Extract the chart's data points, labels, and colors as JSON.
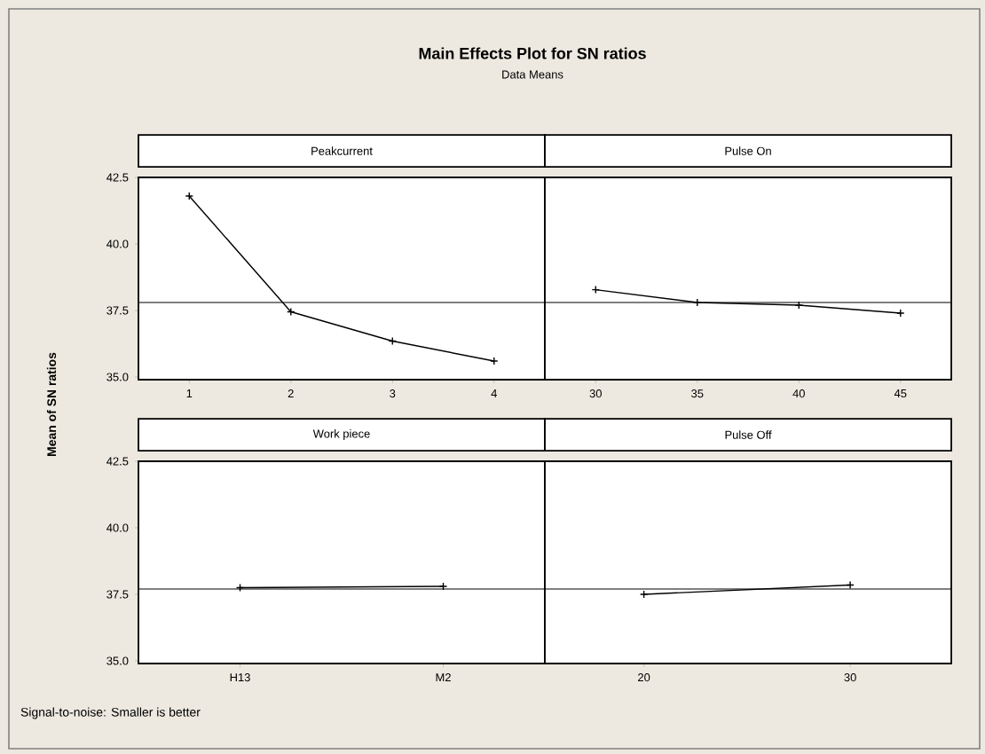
{
  "chart_data": [
    {
      "type": "other",
      "title": "Main Effects Plot for SN ratios",
      "subtitle": "Data Means",
      "ylabel": "Mean of SN ratios",
      "annotations": [
        "Signal-to-noise: Smaller is better"
      ]
    },
    {
      "type": "line",
      "title": "Peakcurrent",
      "x": [
        1,
        2,
        3,
        4
      ],
      "values": [
        41.8,
        37.45,
        36.35,
        35.6
      ],
      "color": "#000000",
      "marker": "cross",
      "xlim": [
        0.5,
        4.5
      ],
      "xticks": [
        1,
        2,
        3,
        4
      ],
      "ylim": [
        34.9,
        42.5
      ],
      "yticks": [
        {
          "value": 35,
          "label": "35.0"
        },
        {
          "value": 37.5,
          "label": "37.5"
        },
        {
          "value": 40,
          "label": "40.0"
        },
        {
          "value": 42.5,
          "label": "42.5"
        }
      ],
      "ref_lines": [
        {
          "axis": "y",
          "value": 37.8
        }
      ]
    },
    {
      "type": "line",
      "title": "Pulse On",
      "x": [
        30,
        35,
        40,
        45
      ],
      "values": [
        38.28,
        37.8,
        37.7,
        37.4
      ],
      "color": "#000000",
      "marker": "cross",
      "xlim": [
        27.5,
        47.5
      ],
      "xticks": [
        30,
        35,
        40,
        45
      ],
      "ylim": [
        34.9,
        42.5
      ],
      "tick_labels": "x",
      "ref_lines": [
        {
          "axis": "y",
          "value": 37.8
        }
      ]
    },
    {
      "type": "line",
      "title": "Work piece",
      "categories": [
        "H13",
        "M2"
      ],
      "values": [
        37.75,
        37.8
      ],
      "color": "#000000",
      "marker": "cross",
      "ylim": [
        34.9,
        42.5
      ],
      "yticks": [
        {
          "value": 35,
          "label": "35.0"
        },
        {
          "value": 37.5,
          "label": "37.5"
        },
        {
          "value": 40,
          "label": "40.0"
        },
        {
          "value": 42.5,
          "label": "42.5"
        }
      ],
      "ref_lines": [
        {
          "axis": "y",
          "value": 37.7
        }
      ]
    },
    {
      "type": "line",
      "title": "Pulse Off",
      "x": [
        20,
        30
      ],
      "values": [
        37.5,
        37.85
      ],
      "color": "#000000",
      "marker": "cross",
      "xlim": [
        15.2,
        34.9
      ],
      "xticks": [
        20,
        30
      ],
      "ylim": [
        34.9,
        42.5
      ],
      "tick_labels": "x",
      "ref_lines": [
        {
          "axis": "y",
          "value": 37.7
        }
      ]
    }
  ]
}
